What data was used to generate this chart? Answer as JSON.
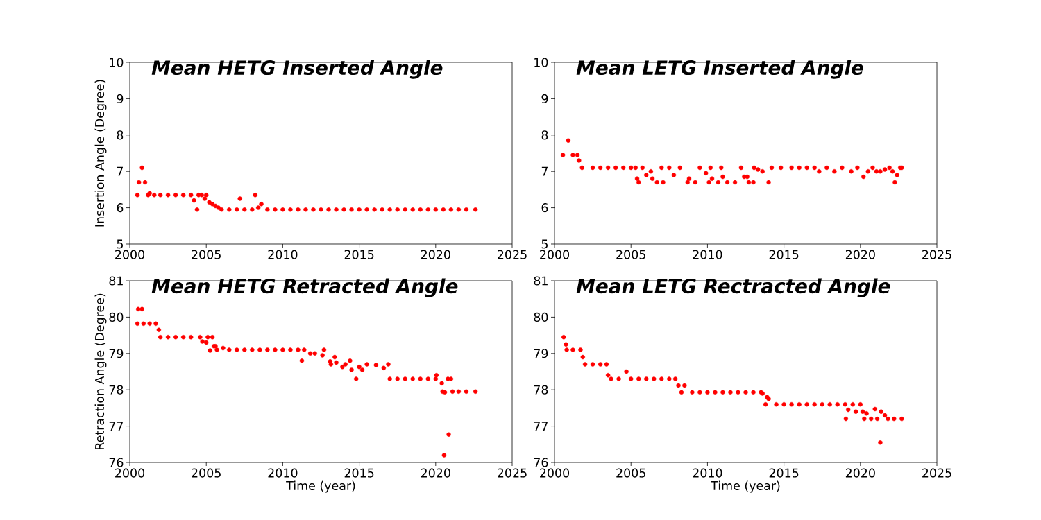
{
  "chart_data": [
    {
      "type": "scatter",
      "title": "Mean HETG Inserted Angle",
      "ylabel": "Insertion Angle (Degree)",
      "color": "#ff0000",
      "marker": "circle",
      "xlim": [
        2000,
        2025
      ],
      "xticks": [
        2000,
        2005,
        2010,
        2015,
        2020,
        2025
      ],
      "ylim": [
        5,
        10
      ],
      "yticks": [
        5,
        6,
        7,
        8,
        9,
        10
      ],
      "x": [
        2000.5,
        2000.6,
        2000.8,
        2001.0,
        2001.2,
        2001.3,
        2001.6,
        2002.0,
        2002.5,
        2003.0,
        2003.5,
        2004.0,
        2004.2,
        2004.4,
        2004.5,
        2004.7,
        2004.9,
        2005.0,
        2005.2,
        2005.4,
        2005.6,
        2005.8,
        2006.0,
        2006.5,
        2007.0,
        2007.2,
        2007.5,
        2008.0,
        2008.2,
        2008.4,
        2008.6,
        2009.0,
        2009.5,
        2010.0,
        2010.5,
        2011.0,
        2011.5,
        2012.0,
        2012.5,
        2013.0,
        2013.5,
        2014.0,
        2014.5,
        2015.0,
        2015.5,
        2016.0,
        2016.5,
        2017.0,
        2017.5,
        2018.0,
        2018.5,
        2019.0,
        2019.5,
        2020.0,
        2020.5,
        2021.0,
        2021.5,
        2022.0,
        2022.6
      ],
      "values": [
        6.35,
        6.7,
        7.1,
        6.7,
        6.35,
        6.4,
        6.35,
        6.35,
        6.35,
        6.35,
        6.35,
        6.35,
        6.2,
        5.95,
        6.35,
        6.35,
        6.25,
        6.35,
        6.15,
        6.1,
        6.05,
        6.0,
        5.95,
        5.95,
        5.95,
        6.25,
        5.95,
        5.95,
        6.35,
        6.0,
        6.1,
        5.95,
        5.95,
        5.95,
        5.95,
        5.95,
        5.95,
        5.95,
        5.95,
        5.95,
        5.95,
        5.95,
        5.95,
        5.95,
        5.95,
        5.95,
        5.95,
        5.95,
        5.95,
        5.95,
        5.95,
        5.95,
        5.95,
        5.95,
        5.95,
        5.95,
        5.95,
        5.95,
        5.95
      ]
    },
    {
      "type": "scatter",
      "title": "Mean LETG Inserted Angle",
      "color": "#ff0000",
      "marker": "circle",
      "xlim": [
        2000,
        2025
      ],
      "xticks": [
        2000,
        2005,
        2010,
        2015,
        2020,
        2025
      ],
      "ylim": [
        5,
        10
      ],
      "yticks": [
        5,
        6,
        7,
        8,
        9,
        10
      ],
      "x": [
        2000.55,
        2000.9,
        2001.2,
        2001.5,
        2001.6,
        2001.8,
        2002.5,
        2003.0,
        2003.5,
        2004.0,
        2004.5,
        2005.0,
        2005.3,
        2005.4,
        2005.5,
        2005.75,
        2006.0,
        2006.3,
        2006.4,
        2006.7,
        2007.0,
        2007.1,
        2007.5,
        2007.8,
        2008.2,
        2008.7,
        2008.8,
        2009.2,
        2009.5,
        2009.9,
        2010.1,
        2010.2,
        2010.3,
        2010.7,
        2010.9,
        2011.0,
        2011.3,
        2011.8,
        2012.2,
        2012.4,
        2012.6,
        2012.7,
        2013.0,
        2013.05,
        2013.3,
        2013.6,
        2014.0,
        2014.2,
        2014.8,
        2015.5,
        2016.0,
        2016.5,
        2017.0,
        2017.3,
        2017.8,
        2018.3,
        2018.8,
        2019.4,
        2019.8,
        2020.2,
        2020.5,
        2020.8,
        2021.05,
        2021.3,
        2021.6,
        2021.9,
        2022.1,
        2022.25,
        2022.4,
        2022.6,
        2022.7
      ],
      "values": [
        7.45,
        7.85,
        7.45,
        7.45,
        7.3,
        7.1,
        7.1,
        7.1,
        7.1,
        7.1,
        7.1,
        7.1,
        7.1,
        6.8,
        6.7,
        7.1,
        6.9,
        7.0,
        6.8,
        6.7,
        7.1,
        6.7,
        7.1,
        6.9,
        7.1,
        6.7,
        6.8,
        6.7,
        7.1,
        6.95,
        6.7,
        7.1,
        6.8,
        6.7,
        7.1,
        6.85,
        6.7,
        6.7,
        7.1,
        6.85,
        6.85,
        6.7,
        6.7,
        7.1,
        7.05,
        7.0,
        6.7,
        7.1,
        7.1,
        7.1,
        7.1,
        7.1,
        7.1,
        7.0,
        7.1,
        7.0,
        7.1,
        7.0,
        7.1,
        6.85,
        7.0,
        7.1,
        7.0,
        7.0,
        7.05,
        7.1,
        7.0,
        6.7,
        6.9,
        7.1,
        7.1
      ]
    },
    {
      "type": "scatter",
      "title": "Mean HETG Retracted Angle",
      "xlabel": "Time (year)",
      "ylabel": "Retraction Angle (Degree)",
      "color": "#ff0000",
      "marker": "circle",
      "xlim": [
        2000,
        2025
      ],
      "xticks": [
        2000,
        2005,
        2010,
        2015,
        2020,
        2025
      ],
      "ylim": [
        76,
        81
      ],
      "yticks": [
        76,
        77,
        78,
        79,
        80,
        81
      ],
      "x": [
        2000.5,
        2000.55,
        2000.8,
        2000.9,
        2001.3,
        2001.7,
        2001.9,
        2002.0,
        2002.5,
        2003.0,
        2003.5,
        2004.0,
        2004.6,
        2004.75,
        2005.0,
        2005.1,
        2005.25,
        2005.4,
        2005.5,
        2005.6,
        2005.7,
        2006.1,
        2006.5,
        2007.0,
        2007.5,
        2008.0,
        2008.5,
        2009.0,
        2009.5,
        2010.0,
        2010.5,
        2011.0,
        2011.25,
        2011.4,
        2011.8,
        2012.1,
        2012.6,
        2012.7,
        2013.1,
        2013.15,
        2013.4,
        2013.5,
        2013.9,
        2014.1,
        2014.4,
        2014.5,
        2014.8,
        2015.0,
        2015.2,
        2015.5,
        2016.1,
        2016.6,
        2016.9,
        2017.0,
        2017.5,
        2018.0,
        2018.5,
        2019.0,
        2019.5,
        2020.0,
        2020.05,
        2020.4,
        2020.45,
        2020.55,
        2020.6,
        2020.8,
        2020.85,
        2021.0,
        2021.1,
        2021.5,
        2022.0,
        2022.6
      ],
      "values": [
        79.82,
        80.22,
        80.22,
        79.82,
        79.82,
        79.82,
        79.65,
        79.45,
        79.45,
        79.45,
        79.45,
        79.45,
        79.45,
        79.33,
        79.3,
        79.45,
        79.08,
        79.45,
        79.2,
        79.2,
        79.1,
        79.15,
        79.1,
        79.1,
        79.1,
        79.1,
        79.1,
        79.1,
        79.1,
        79.1,
        79.1,
        79.1,
        78.8,
        79.1,
        79.0,
        79.0,
        78.95,
        79.1,
        78.78,
        78.7,
        78.9,
        78.75,
        78.63,
        78.7,
        78.8,
        78.55,
        78.3,
        78.63,
        78.55,
        78.7,
        78.68,
        78.6,
        78.7,
        78.3,
        78.3,
        78.3,
        78.3,
        78.3,
        78.3,
        78.3,
        78.4,
        78.18,
        77.95,
        76.2,
        77.93,
        78.3,
        76.77,
        78.3,
        77.95,
        77.95,
        77.95,
        77.95
      ]
    },
    {
      "type": "scatter",
      "title": "Mean LETG Rectracted Angle",
      "xlabel": "Time (year)",
      "color": "#ff0000",
      "marker": "circle",
      "xlim": [
        2000,
        2025
      ],
      "xticks": [
        2000,
        2005,
        2010,
        2015,
        2020,
        2025
      ],
      "ylim": [
        76,
        81
      ],
      "yticks": [
        76,
        77,
        78,
        79,
        80,
        81
      ],
      "x": [
        2000.6,
        2000.75,
        2000.8,
        2001.2,
        2001.7,
        2001.85,
        2002.0,
        2002.5,
        2003.0,
        2003.4,
        2003.5,
        2003.7,
        2004.2,
        2004.7,
        2005.0,
        2005.5,
        2006.0,
        2006.5,
        2007.0,
        2007.5,
        2007.9,
        2008.1,
        2008.3,
        2008.5,
        2009.0,
        2009.5,
        2010.0,
        2010.5,
        2011.0,
        2011.5,
        2012.0,
        2012.5,
        2013.0,
        2013.5,
        2013.6,
        2013.8,
        2013.9,
        2014.0,
        2014.5,
        2015.0,
        2015.5,
        2016.0,
        2016.5,
        2017.0,
        2017.5,
        2018.0,
        2018.5,
        2019.0,
        2019.05,
        2019.2,
        2019.5,
        2019.7,
        2020.0,
        2020.15,
        2020.25,
        2020.4,
        2020.7,
        2020.95,
        2021.1,
        2021.3,
        2021.35,
        2021.6,
        2021.8,
        2022.2,
        2022.7
      ],
      "values": [
        79.45,
        79.25,
        79.1,
        79.1,
        79.1,
        78.9,
        78.7,
        78.7,
        78.7,
        78.7,
        78.4,
        78.3,
        78.3,
        78.5,
        78.3,
        78.3,
        78.3,
        78.3,
        78.3,
        78.3,
        78.3,
        78.12,
        77.93,
        78.12,
        77.93,
        77.93,
        77.93,
        77.93,
        77.93,
        77.93,
        77.93,
        77.93,
        77.93,
        77.93,
        77.9,
        77.6,
        77.8,
        77.75,
        77.6,
        77.6,
        77.6,
        77.6,
        77.6,
        77.6,
        77.6,
        77.6,
        77.6,
        77.6,
        77.2,
        77.45,
        77.6,
        77.4,
        77.6,
        77.4,
        77.2,
        77.35,
        77.2,
        77.47,
        77.2,
        76.55,
        77.4,
        77.3,
        77.2,
        77.2,
        77.2
      ]
    }
  ]
}
